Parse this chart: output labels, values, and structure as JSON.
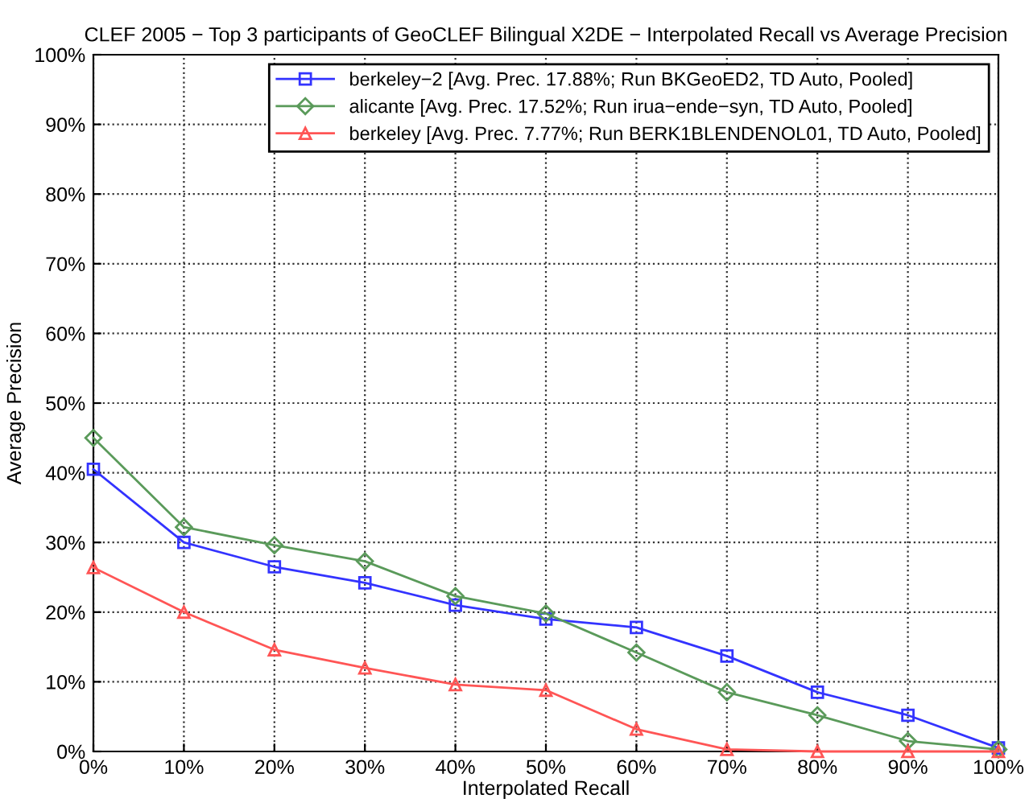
{
  "chart_data": {
    "type": "line",
    "title": "CLEF 2005 − Top 3 participants of GeoCLEF Bilingual X2DE − Interpolated Recall vs Average Precision",
    "xlabel": "Interpolated Recall",
    "ylabel": "Average Precision",
    "x": [
      0,
      10,
      20,
      30,
      40,
      50,
      60,
      70,
      80,
      90,
      100
    ],
    "series": [
      {
        "name": "berkeley−2 [Avg. Prec. 17.88%; Run BKGeoED2, TD Auto, Pooled]",
        "color": "#3333ff",
        "marker": "square",
        "values": [
          40.5,
          30,
          26.5,
          24.2,
          21,
          19,
          17.8,
          13.7,
          8.5,
          5.2,
          0.5
        ]
      },
      {
        "name": "alicante [Avg. Prec. 17.52%; Run irua−ende−syn, TD Auto, Pooled]",
        "color": "#5a9a5a",
        "marker": "diamond",
        "values": [
          45,
          32.2,
          29.6,
          27.3,
          22.3,
          19.8,
          14.2,
          8.5,
          5.2,
          1.5,
          0.3
        ]
      },
      {
        "name": "berkeley [Avg. Prec. 7.77%; Run BERK1BLENDENOL01, TD Auto, Pooled]",
        "color": "#ff5555",
        "marker": "triangle",
        "values": [
          26.4,
          20,
          14.6,
          12,
          9.6,
          8.8,
          3.2,
          0.3,
          0,
          0,
          0
        ]
      }
    ],
    "xlim": [
      0,
      100
    ],
    "ylim": [
      0,
      100
    ],
    "xticks": [
      {
        "value": 0,
        "label": "0%"
      },
      {
        "value": 10,
        "label": "10%"
      },
      {
        "value": 20,
        "label": "20%"
      },
      {
        "value": 30,
        "label": "30%"
      },
      {
        "value": 40,
        "label": "40%"
      },
      {
        "value": 50,
        "label": "50%"
      },
      {
        "value": 60,
        "label": "60%"
      },
      {
        "value": 70,
        "label": "70%"
      },
      {
        "value": 80,
        "label": "80%"
      },
      {
        "value": 90,
        "label": "90%"
      },
      {
        "value": 100,
        "label": "100%"
      }
    ],
    "yticks": [
      {
        "value": 0,
        "label": "0%"
      },
      {
        "value": 10,
        "label": "10%"
      },
      {
        "value": 20,
        "label": "20%"
      },
      {
        "value": 30,
        "label": "30%"
      },
      {
        "value": 40,
        "label": "40%"
      },
      {
        "value": 50,
        "label": "50%"
      },
      {
        "value": 60,
        "label": "60%"
      },
      {
        "value": 70,
        "label": "70%"
      },
      {
        "value": 80,
        "label": "80%"
      },
      {
        "value": 90,
        "label": "90%"
      },
      {
        "value": 100,
        "label": "100%"
      }
    ],
    "grid": true,
    "legend": "top right",
    "line_style": "solid"
  }
}
